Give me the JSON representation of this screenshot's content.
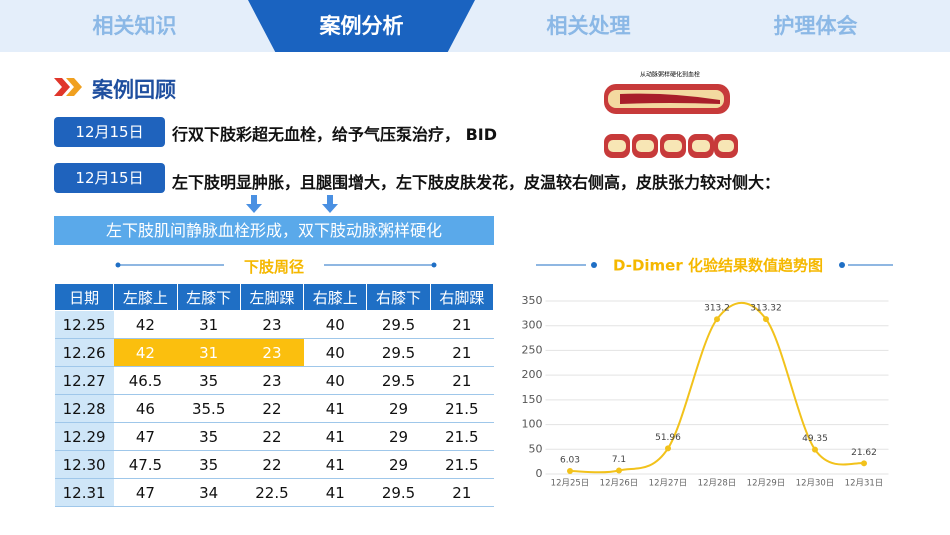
{
  "tabs": [
    "相关知识",
    "案例分析",
    "相关处理",
    "护理体会"
  ],
  "section_title": "案例回顾",
  "figure": {
    "caption": "从动脉粥样硬化到血栓"
  },
  "events": [
    {
      "date": "12月15日",
      "text": "行双下肢彩超无血栓，给予气压泵治疗， BID"
    },
    {
      "date": "12月15日",
      "text": "左下肢明显肿胀，且腿围增大，左下肢皮肤发花，皮温较右侧高，皮肤张力较对侧大："
    }
  ],
  "conclusion": "左下肢肌间静脉血栓形成，双下肢动脉粥样硬化",
  "table": {
    "title": "下肢周径",
    "header": [
      "日期",
      "左膝上",
      "左膝下",
      "左脚踝",
      "右膝上",
      "右膝下",
      "右脚踝"
    ],
    "rows": [
      [
        "12.25",
        42,
        31,
        23,
        40,
        29.5,
        21
      ],
      [
        "12.26",
        42,
        31,
        23,
        40,
        29.5,
        21
      ],
      [
        "12.27",
        46.5,
        35,
        23,
        40,
        29.5,
        21
      ],
      [
        "12.28",
        46,
        35.5,
        22,
        41,
        29,
        21.5
      ],
      [
        "12.29",
        47,
        35,
        22,
        41,
        29,
        21.5
      ],
      [
        "12.30",
        47.5,
        35,
        22,
        41,
        29,
        21.5
      ],
      [
        "12.31",
        47,
        34,
        22.5,
        41,
        29.5,
        21
      ]
    ]
  },
  "chart_data": {
    "type": "line",
    "title": "D-Dimer 化验结果数值趋势图",
    "categories": [
      "12月25日",
      "12月26日",
      "12月27日",
      "12月28日",
      "12月29日",
      "12月30日",
      "12月31日"
    ],
    "series": [
      {
        "name": "D-Dimer",
        "color": "#f2c21b",
        "values": [
          6.03,
          7.1,
          51.96,
          313.2,
          313.32,
          49.35,
          21.62
        ]
      }
    ],
    "ylim": [
      0,
      350
    ],
    "yticks": [
      0,
      50,
      100,
      150,
      200,
      250,
      300,
      350
    ],
    "grid": true,
    "smooth": true
  }
}
